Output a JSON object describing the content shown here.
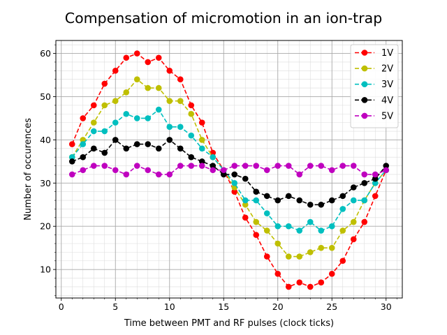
{
  "chart_data": {
    "type": "line",
    "title": "Compensation of micromotion in an ion-trap",
    "xlabel": "Time between PMT and RF pulses (clock ticks)",
    "ylabel": "Number of occurences",
    "xlim": [
      -0.5,
      31.5
    ],
    "ylim": [
      3.4,
      63
    ],
    "xticks": [
      0,
      5,
      10,
      15,
      20,
      25,
      30
    ],
    "yticks": [
      10,
      20,
      30,
      40,
      50,
      60
    ],
    "x": [
      1,
      2,
      3,
      4,
      5,
      6,
      7,
      8,
      9,
      10,
      11,
      12,
      13,
      14,
      15,
      16,
      17,
      18,
      19,
      20,
      21,
      22,
      23,
      24,
      25,
      26,
      27,
      28,
      29,
      30
    ],
    "grid": true,
    "minor_grid": true,
    "legend_position": "top-right",
    "series": [
      {
        "name": "1V",
        "color": "#ff0000",
        "values": [
          39,
          45,
          48,
          53,
          56,
          59,
          60,
          58,
          59,
          56,
          54,
          48,
          44,
          37,
          33,
          28,
          22,
          18,
          13,
          9,
          6,
          7,
          6,
          7,
          9,
          12,
          17,
          21,
          27,
          33
        ]
      },
      {
        "name": "2V",
        "color": "#bfbf00",
        "values": [
          36,
          40,
          44,
          48,
          49,
          51,
          54,
          52,
          52,
          49,
          49,
          46,
          40,
          36,
          33,
          29,
          25,
          21,
          19,
          16,
          13,
          13,
          14,
          15,
          15,
          19,
          21,
          26,
          30,
          33
        ]
      },
      {
        "name": "3V",
        "color": "#00bfbf",
        "values": [
          36,
          39,
          42,
          42,
          44,
          46,
          45,
          45,
          47,
          43,
          43,
          41,
          38,
          36,
          33,
          30,
          26,
          26,
          23,
          20,
          20,
          19,
          21,
          19,
          20,
          24,
          26,
          26,
          30,
          33
        ]
      },
      {
        "name": "4V",
        "color": "#000000",
        "values": [
          35,
          36,
          38,
          37,
          40,
          38,
          39,
          39,
          38,
          40,
          38,
          36,
          35,
          34,
          32,
          32,
          31,
          28,
          27,
          26,
          27,
          26,
          25,
          25,
          26,
          27,
          29,
          30,
          31,
          34
        ]
      },
      {
        "name": "5V",
        "color": "#bf00bf",
        "values": [
          32,
          33,
          34,
          34,
          33,
          32,
          34,
          33,
          32,
          32,
          34,
          34,
          34,
          33,
          33,
          34,
          34,
          34,
          33,
          34,
          34,
          32,
          34,
          34,
          33,
          34,
          34,
          32,
          32,
          33
        ]
      }
    ]
  }
}
